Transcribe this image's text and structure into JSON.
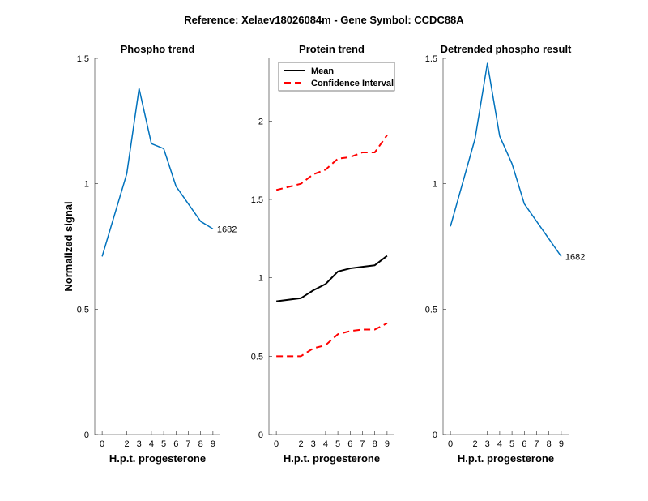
{
  "figure": {
    "suptitle": "Reference:  Xelaev18026084m - Gene Symbol:  CCDC88A"
  },
  "colors": {
    "phospho": "#0072BD",
    "mean": "#000000",
    "ci": "#FF0000",
    "axis": "#262626"
  },
  "chart_data": [
    {
      "type": "line",
      "title": "Phospho trend",
      "xlabel": "H.p.t. progesterone",
      "ylabel": "Normalized signal",
      "xlim": [
        -0.6,
        9.6
      ],
      "ylim": [
        0,
        1.5
      ],
      "xticks": [
        0,
        2,
        3,
        4,
        5,
        6,
        7,
        8,
        9
      ],
      "yticks": [
        0,
        0.5,
        1,
        1.5
      ],
      "ytick_labels": [
        "0",
        "0.5",
        "1",
        "1.5"
      ],
      "series": [
        {
          "name": "",
          "color": "#0072BD",
          "x": [
            0,
            2,
            3,
            4,
            5,
            6,
            7,
            8,
            9
          ],
          "y": [
            0.71,
            1.04,
            1.38,
            1.16,
            1.14,
            0.99,
            0.92,
            0.85,
            0.82
          ],
          "end_label": "1682"
        }
      ]
    },
    {
      "type": "line",
      "title": "Protein trend",
      "xlabel": "H.p.t. progesterone",
      "ylabel": "",
      "xlim": [
        -0.6,
        9.6
      ],
      "ylim": [
        0.0,
        2.4
      ],
      "xticks": [
        0,
        2,
        3,
        4,
        5,
        6,
        7,
        8,
        9
      ],
      "yticks": [
        0,
        0.5,
        1,
        1.5,
        2
      ],
      "ytick_labels": [
        "0",
        "0.5",
        "1",
        "1.5",
        "2"
      ],
      "legend": {
        "position": "top-left",
        "entries": [
          "Mean",
          "Confidence Interval"
        ]
      },
      "series": [
        {
          "name": "Mean",
          "color": "#000000",
          "dash": "solid",
          "x": [
            0,
            2,
            3,
            4,
            5,
            6,
            7,
            8,
            9
          ],
          "y": [
            0.85,
            0.87,
            0.92,
            0.96,
            1.04,
            1.06,
            1.07,
            1.08,
            1.14
          ]
        },
        {
          "name": "Confidence Interval",
          "color": "#FF0000",
          "dash": "dashed",
          "x": [
            0,
            2,
            3,
            4,
            5,
            6,
            7,
            8,
            9
          ],
          "y": [
            1.56,
            1.6,
            1.66,
            1.69,
            1.76,
            1.77,
            1.8,
            1.8,
            1.91
          ]
        },
        {
          "name": "",
          "color": "#FF0000",
          "dash": "dashed",
          "x": [
            0,
            2,
            3,
            4,
            5,
            6,
            7,
            8,
            9
          ],
          "y": [
            0.5,
            0.5,
            0.55,
            0.57,
            0.64,
            0.66,
            0.67,
            0.67,
            0.71
          ]
        }
      ]
    },
    {
      "type": "line",
      "title": "Detrended phospho result",
      "xlabel": "H.p.t. progesterone",
      "ylabel": "",
      "xlim": [
        -0.6,
        9.6
      ],
      "ylim": [
        0,
        1.5
      ],
      "xticks": [
        0,
        2,
        3,
        4,
        5,
        6,
        7,
        8,
        9
      ],
      "yticks": [
        0,
        0.5,
        1,
        1.5
      ],
      "ytick_labels": [
        "0",
        "0.5",
        "1",
        "1.5"
      ],
      "series": [
        {
          "name": "",
          "color": "#0072BD",
          "x": [
            0,
            2,
            3,
            4,
            5,
            6,
            7,
            8,
            9
          ],
          "y": [
            0.83,
            1.18,
            1.48,
            1.19,
            1.08,
            0.92,
            0.85,
            0.78,
            0.71
          ],
          "end_label": "1682"
        }
      ]
    }
  ]
}
